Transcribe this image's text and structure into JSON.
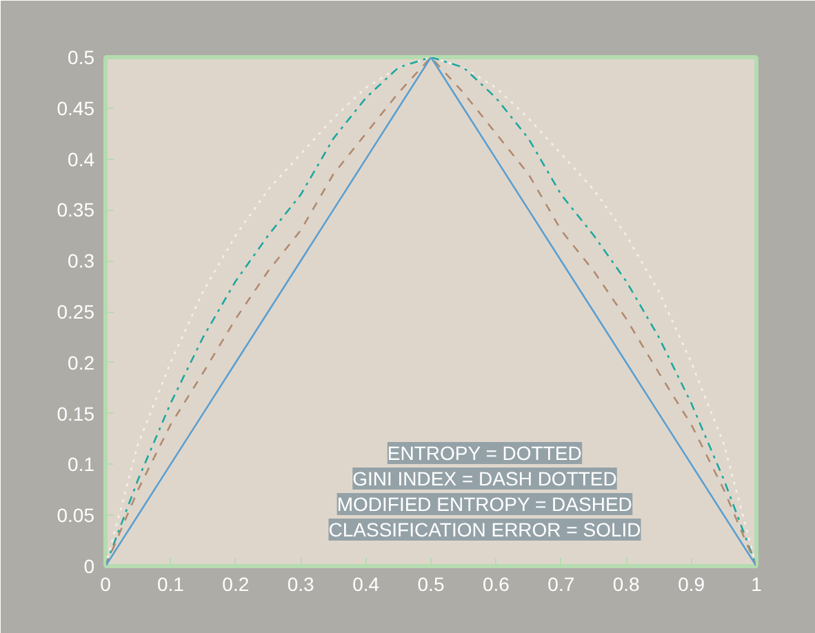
{
  "chart_data": {
    "type": "line",
    "x": [
      0,
      0.05,
      0.1,
      0.15,
      0.2,
      0.25,
      0.3,
      0.35,
      0.4,
      0.45,
      0.5,
      0.55,
      0.6,
      0.65,
      0.7,
      0.75,
      0.8,
      0.85,
      0.9,
      0.95,
      1
    ],
    "series": [
      {
        "color": "#f4f0ea",
        "line_style": "dotted",
        "values": [
          0,
          0.12,
          0.2,
          0.27,
          0.325,
          0.37,
          0.405,
          0.44,
          0.47,
          0.49,
          0.5,
          0.49,
          0.47,
          0.44,
          0.405,
          0.37,
          0.325,
          0.27,
          0.2,
          0.12,
          0
        ]
      },
      {
        "color": "#1aa8a0",
        "line_style": "dashdot",
        "values": [
          0,
          0.085,
          0.16,
          0.225,
          0.28,
          0.325,
          0.365,
          0.42,
          0.46,
          0.49,
          0.5,
          0.49,
          0.46,
          0.42,
          0.365,
          0.325,
          0.28,
          0.225,
          0.16,
          0.085,
          0
        ]
      },
      {
        "color": "#b08a70",
        "line_style": "dashed",
        "values": [
          0,
          0.075,
          0.139,
          0.19,
          0.243,
          0.29,
          0.33,
          0.385,
          0.425,
          0.465,
          0.5,
          0.465,
          0.425,
          0.385,
          0.33,
          0.29,
          0.243,
          0.19,
          0.139,
          0.075,
          0
        ]
      },
      {
        "color": "#5b9fd0",
        "line_style": "solid",
        "values": [
          0,
          0.05,
          0.1,
          0.15,
          0.2,
          0.25,
          0.3,
          0.35,
          0.4,
          0.45,
          0.5,
          0.45,
          0.4,
          0.35,
          0.3,
          0.25,
          0.2,
          0.15,
          0.1,
          0.05,
          0
        ]
      }
    ],
    "xlim": [
      0,
      1
    ],
    "ylim": [
      0,
      0.5
    ],
    "xticks": [
      0,
      0.1,
      0.2,
      0.3,
      0.4,
      0.5,
      0.6,
      0.7,
      0.8,
      0.9,
      1
    ],
    "yticks": [
      0,
      0.05,
      0.1,
      0.15,
      0.2,
      0.25,
      0.3,
      0.35,
      0.4,
      0.45,
      0.5
    ],
    "grid": false,
    "annotations": [
      "ENTROPY = DOTTED",
      "GINI INDEX = DASH DOTTED",
      "MODIFIED ENTROPY = DASHED",
      "CLASSIFICATION ERROR = SOLID"
    ]
  }
}
